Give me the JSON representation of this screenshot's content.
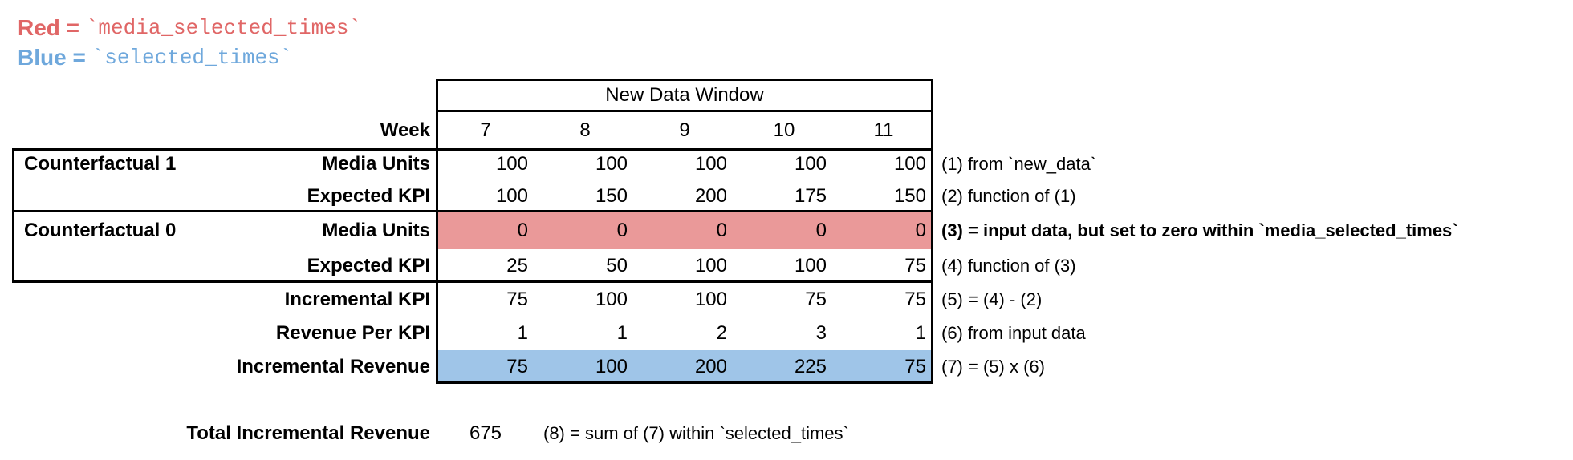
{
  "legend": {
    "red": {
      "word": "Red",
      "eq": " = ",
      "code": "`media_selected_times`"
    },
    "blue": {
      "word": "Blue",
      "eq": " = ",
      "code": "`selected_times`"
    }
  },
  "table": {
    "header": "New Data Window",
    "week_label": "Week",
    "weeks": [
      "7",
      "8",
      "9",
      "10",
      "11"
    ],
    "rows": [
      {
        "group": "Counterfactual 1",
        "label": "Media Units",
        "values": [
          "100",
          "100",
          "100",
          "100",
          "100"
        ],
        "annotation": "(1) from `new_data`",
        "highlight": null,
        "annotation_bold": false
      },
      {
        "group": "",
        "label": "Expected KPI",
        "values": [
          "100",
          "150",
          "200",
          "175",
          "150"
        ],
        "annotation": "(2) function of (1)",
        "highlight": null,
        "annotation_bold": false
      },
      {
        "group": "Counterfactual 0",
        "label": "Media Units",
        "values": [
          "0",
          "0",
          "0",
          "0",
          "0"
        ],
        "annotation": "(3) = input data, but set to zero within `media_selected_times`",
        "highlight": "red",
        "annotation_bold": true
      },
      {
        "group": "",
        "label": "Expected KPI",
        "values": [
          "25",
          "50",
          "100",
          "100",
          "75"
        ],
        "annotation": "(4) function of (3)",
        "highlight": null,
        "annotation_bold": false
      },
      {
        "group": "",
        "label": "Incremental KPI",
        "values": [
          "75",
          "100",
          "100",
          "75",
          "75"
        ],
        "annotation": "(5) = (4) - (2)",
        "highlight": null,
        "annotation_bold": false
      },
      {
        "group": "",
        "label": "Revenue Per KPI",
        "values": [
          "1",
          "1",
          "2",
          "3",
          "1"
        ],
        "annotation": "(6) from input data",
        "highlight": null,
        "annotation_bold": false
      },
      {
        "group": "",
        "label": "Incremental Revenue",
        "values": [
          "75",
          "100",
          "200",
          "225",
          "75"
        ],
        "annotation": "(7) = (5) x (6)",
        "highlight": "blue",
        "annotation_bold": false
      }
    ]
  },
  "totals": {
    "label": "Total Incremental Revenue",
    "value": "675",
    "annotation": "(8) = sum of (7) within `selected_times`"
  },
  "colors": {
    "red_fill": "#EA9999",
    "blue_fill": "#9FC5E8",
    "red_text": "#E06666",
    "blue_text": "#6FA8DC",
    "border": "#000000"
  }
}
